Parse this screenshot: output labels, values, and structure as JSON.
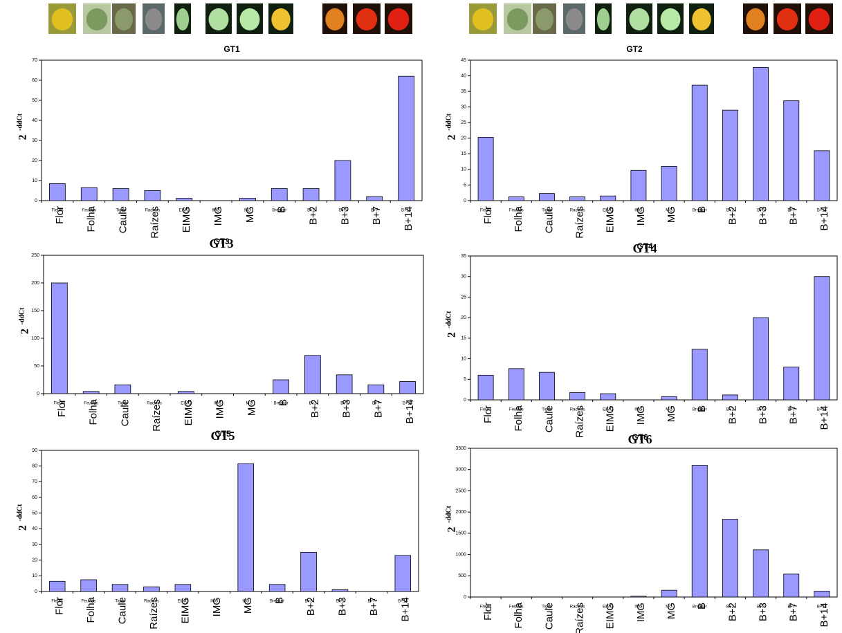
{
  "chart_data": [
    {
      "type": "bar",
      "title": "GT1",
      "ylabel": "2",
      "ylabel_sup": "-ddCt",
      "categories": [
        "Fleurs",
        "Feuilles",
        "Tiges",
        "Racines",
        "EIMG",
        "IMG",
        "MG",
        "Breaker",
        "B+2",
        "B+3",
        "B+7",
        "B+14"
      ],
      "categories_rotated": [
        "Flor",
        "Folha",
        "Caule",
        "Raízes",
        "EIMG",
        "IMG",
        "MG",
        "B",
        "B+2",
        "B+3",
        "B+7",
        "B+14"
      ],
      "values": [
        8.5,
        6.5,
        6,
        5,
        1.2,
        0,
        1.2,
        6,
        6,
        20,
        2,
        62
      ],
      "color": "#9999ff",
      "ylim": [
        0,
        70
      ],
      "yticks": [
        0,
        10,
        20,
        30,
        40,
        50,
        60,
        70
      ]
    },
    {
      "type": "bar",
      "title": "GT2",
      "ylabel": "2",
      "ylabel_sup": "-ddCt",
      "categories": [
        "Fleurs",
        "Feuilles",
        "Tiges",
        "Racines",
        "EIMG",
        "IMG",
        "MG",
        "Breaker",
        "B+2",
        "B+3",
        "B+7",
        "B+14"
      ],
      "categories_rotated": [
        "Flor",
        "Folha",
        "Caule",
        "Raízes",
        "EIMG",
        "IMG",
        "MG",
        "B",
        "B+2",
        "B+3",
        "B+7",
        "B+14"
      ],
      "values": [
        20.3,
        1.2,
        2.3,
        1.2,
        1.5,
        9.7,
        11,
        37,
        29,
        42.7,
        32,
        16
      ],
      "color": "#9999ff",
      "ylim": [
        0,
        45
      ],
      "yticks": [
        0,
        5,
        10,
        15,
        20,
        25,
        30,
        35,
        40,
        45
      ]
    },
    {
      "type": "bar",
      "title": "GT3",
      "subtitle": "GT3",
      "ylabel": "2",
      "ylabel_sup": "-ddCt",
      "categories": [
        "Fleurs",
        "Feuilles",
        "Tiges",
        "Racines",
        "EIMG",
        "IMG",
        "MG",
        "Breaker",
        "B+2",
        "B+3",
        "B+7",
        "B+14"
      ],
      "categories_rotated": [
        "Flor",
        "Folha",
        "Caule",
        "Raízes",
        "EIMG",
        "IMG",
        "MG",
        "B",
        "B+2",
        "B+3",
        "B+7",
        "B+14"
      ],
      "values": [
        200,
        4,
        16,
        0,
        4,
        0,
        0,
        25,
        69,
        34,
        16,
        22
      ],
      "color": "#9999ff",
      "ylim": [
        0,
        250
      ],
      "yticks": [
        0,
        50,
        100,
        150,
        200,
        250
      ]
    },
    {
      "type": "bar",
      "title": "GT4",
      "subtitle": "GT4",
      "ylabel": "2",
      "ylabel_sup": "-ddCt",
      "categories": [
        "Fleurs",
        "Feuilles",
        "Tiges",
        "Racines",
        "EIMG",
        "IMG",
        "MG",
        "Breaker",
        "B+2",
        "B+3",
        "B+7",
        "B+14"
      ],
      "categories_rotated": [
        "Flor",
        "Folha",
        "Caule",
        "Raízes",
        "EIMG",
        "IMG",
        "MG",
        "B",
        "B+2",
        "B+3",
        "B+7",
        "B+14"
      ],
      "values": [
        6,
        7.6,
        6.7,
        1.8,
        1.5,
        0,
        0.8,
        12.3,
        1.2,
        20,
        8,
        30
      ],
      "color": "#9999ff",
      "ylim": [
        0,
        35
      ],
      "yticks": [
        0,
        5,
        10,
        15,
        20,
        25,
        30,
        35
      ]
    },
    {
      "type": "bar",
      "title": "GT5",
      "subtitle": "GT5",
      "ylabel": "2",
      "ylabel_sup": "-ddCt",
      "categories": [
        "Fleurs",
        "Feuilles",
        "Tiges",
        "Racines",
        "EIMG",
        "IMG",
        "MG",
        "Breaker",
        "B+2",
        "B+3",
        "B+7",
        "B+14"
      ],
      "categories_rotated": [
        "Flor",
        "Folha",
        "Caule",
        "Raízes",
        "EIMG",
        "IMG",
        "MG",
        "B",
        "B+2",
        "B+3",
        "B+7",
        "B+14"
      ],
      "values": [
        6.5,
        7.5,
        4.5,
        3,
        4.5,
        0,
        81.5,
        4.5,
        25,
        1.2,
        0,
        23
      ],
      "color": "#9999ff",
      "ylim": [
        0,
        90
      ],
      "yticks": [
        0,
        10,
        20,
        30,
        40,
        50,
        60,
        70,
        80,
        90
      ]
    },
    {
      "type": "bar",
      "title": "GT6",
      "subtitle": "GT6",
      "ylabel": "2",
      "ylabel_sup": "-ddCt",
      "categories": [
        "Fleurs",
        "Feuilles",
        "Tiges",
        "Racines",
        "EIMG",
        "IMG",
        "MG",
        "Breaker",
        "B+2",
        "B+3",
        "B+7",
        "B+14"
      ],
      "categories_rotated": [
        "Flor",
        "Folha",
        "Caule",
        "Raízes",
        "EIMG",
        "IMG",
        "MG",
        "B",
        "B+2",
        "B+3",
        "B+7",
        "B+14"
      ],
      "values": [
        0,
        0,
        0,
        0,
        0,
        20,
        160,
        3100,
        1830,
        1110,
        540,
        140
      ],
      "color": "#9999ff",
      "ylim": [
        0,
        3500
      ],
      "yticks": [
        0,
        500,
        1000,
        1500,
        2000,
        2500,
        3000,
        3500
      ]
    }
  ]
}
